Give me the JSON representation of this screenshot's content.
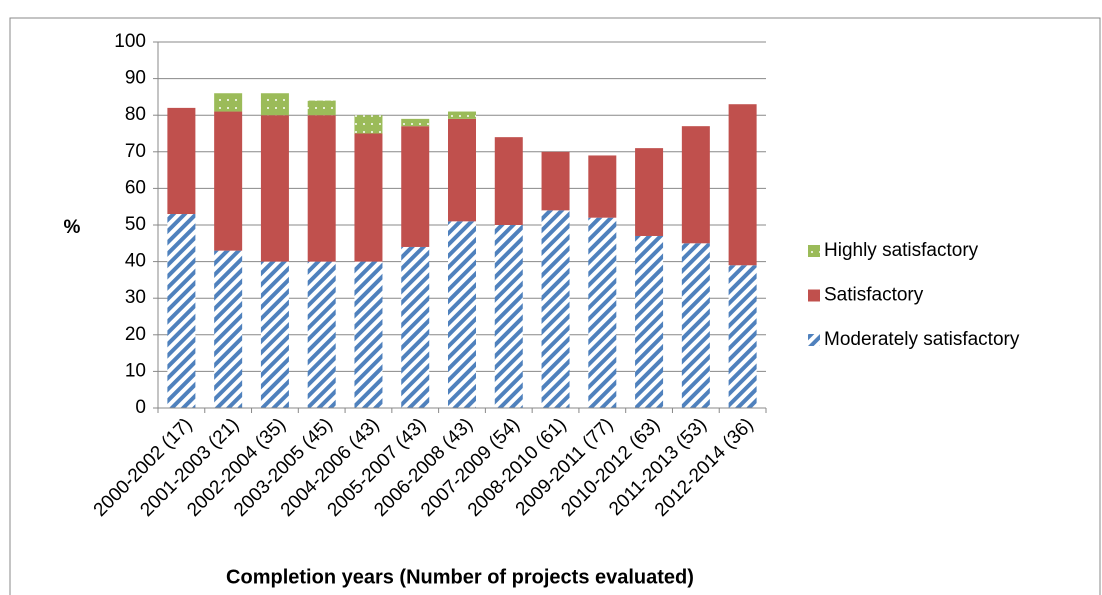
{
  "chart_data": {
    "type": "stacked_bar",
    "y_label": "%",
    "x_label": "Completion years (Number of projects evaluated)",
    "categories": [
      "2000-2002 (17)",
      "2001-2003 (21)",
      "2002-2004 (35)",
      "2003-2005 (45)",
      "2004-2006 (43)",
      "2005-2007 (43)",
      "2006-2008 (43)",
      "2007-2009 (54)",
      "2008-2010 (61)",
      "2009-2011 (77)",
      "2010-2012 (63)",
      "2011-2013 (53)",
      "2012-2014 (36)"
    ],
    "series": [
      {
        "name": "Moderately satisfactory",
        "color": "#4f81bd",
        "values": [
          53,
          43,
          40,
          40,
          40,
          44,
          51,
          50,
          54,
          52,
          47,
          45,
          39
        ]
      },
      {
        "name": "Satisfactory",
        "color": "#c0504d",
        "values": [
          29,
          38,
          40,
          40,
          35,
          33,
          28,
          24,
          16,
          17,
          24,
          32,
          44
        ]
      },
      {
        "name": "Highly satisfactory",
        "color": "#9bbb59",
        "values": [
          0,
          5,
          6,
          4,
          5,
          2,
          2,
          0,
          0,
          0,
          0,
          0,
          0
        ]
      }
    ],
    "ylim": [
      0,
      100
    ],
    "yticks": [
      0,
      10,
      20,
      30,
      40,
      50,
      60,
      70,
      80,
      90,
      100
    ],
    "grid": true,
    "legend": "right"
  }
}
